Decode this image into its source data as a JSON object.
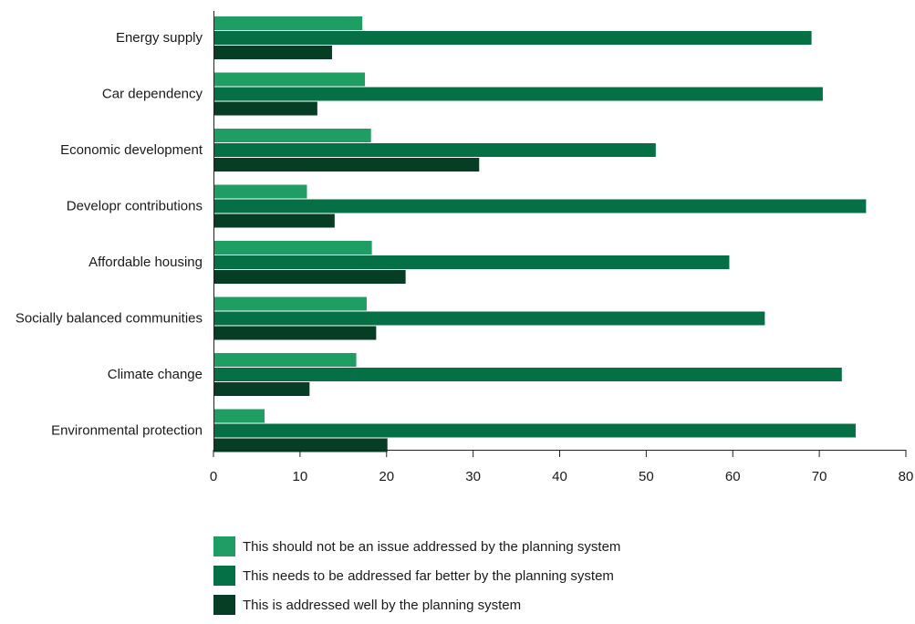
{
  "chart_data": {
    "type": "bar",
    "orientation": "horizontal",
    "categories": [
      "Energy supply",
      "Car dependency",
      "Economic development",
      "Developr contributions",
      "Affordable housing",
      "Socially balanced communities",
      "Climate change",
      "Environmental protection"
    ],
    "series": [
      {
        "name": "This should not be an issue addressed by the planning system",
        "color": "#1e9e63",
        "values": [
          17.2,
          17.5,
          18.2,
          10.8,
          18.3,
          17.7,
          16.5,
          5.9
        ]
      },
      {
        "name": "This needs to be addressed far better by the planning system",
        "color": "#057045",
        "values": [
          69.1,
          70.4,
          51.1,
          75.4,
          59.6,
          63.7,
          72.6,
          74.2
        ]
      },
      {
        "name": "This is addressed well by the planning system",
        "color": "#063d25",
        "values": [
          13.7,
          12.0,
          30.7,
          14.0,
          22.2,
          18.8,
          11.1,
          20.1
        ]
      }
    ],
    "xlim": [
      0,
      80
    ],
    "xticks": [
      "0",
      "10",
      "20",
      "30",
      "40",
      "50",
      "60",
      "70",
      "80"
    ],
    "title": "",
    "xlabel": "",
    "ylabel": "",
    "grid": false,
    "legend_position": "bottom-left"
  }
}
